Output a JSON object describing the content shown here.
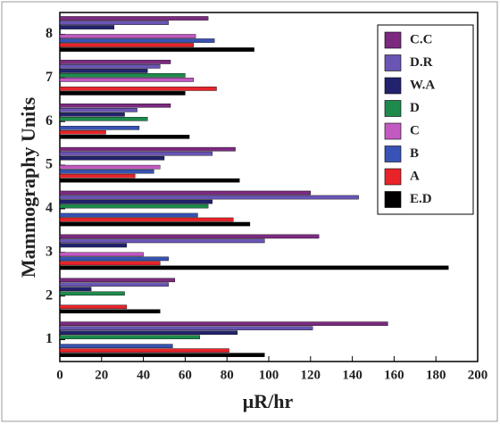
{
  "chart_data": {
    "type": "bar",
    "orientation": "horizontal",
    "xlabel": "μR/hr",
    "ylabel": "Mammography Units",
    "categories": [
      "1",
      "2",
      "3",
      "4",
      "5",
      "6",
      "7",
      "8"
    ],
    "series": [
      {
        "name": "E.D",
        "color": "#000000",
        "values": [
          98,
          48,
          186,
          91,
          86,
          62,
          60,
          93
        ]
      },
      {
        "name": "A",
        "color": "#e8242a",
        "values": [
          81,
          32,
          48,
          83,
          36,
          22,
          75,
          64
        ]
      },
      {
        "name": "B",
        "color": "#3853b5",
        "values": [
          54,
          null,
          52,
          66,
          45,
          38,
          null,
          74
        ]
      },
      {
        "name": "C",
        "color": "#c25ac2",
        "values": [
          null,
          null,
          40,
          null,
          48,
          null,
          64,
          65
        ]
      },
      {
        "name": "D",
        "color": "#1e8a4c",
        "values": [
          67,
          31,
          null,
          71,
          null,
          42,
          60,
          null
        ]
      },
      {
        "name": "W.A",
        "color": "#22226e",
        "values": [
          85,
          15,
          32,
          73,
          50,
          31,
          42,
          26
        ]
      },
      {
        "name": "D.R",
        "color": "#6a55b5",
        "values": [
          121,
          52,
          98,
          143,
          73,
          37,
          48,
          52
        ]
      },
      {
        "name": "C.C",
        "color": "#7c2a80",
        "values": [
          157,
          55,
          124,
          120,
          84,
          53,
          53,
          71
        ]
      }
    ],
    "xlim": [
      0,
      200
    ],
    "xticks": [
      0,
      20,
      40,
      60,
      80,
      100,
      120,
      140,
      160,
      180,
      200
    ]
  }
}
